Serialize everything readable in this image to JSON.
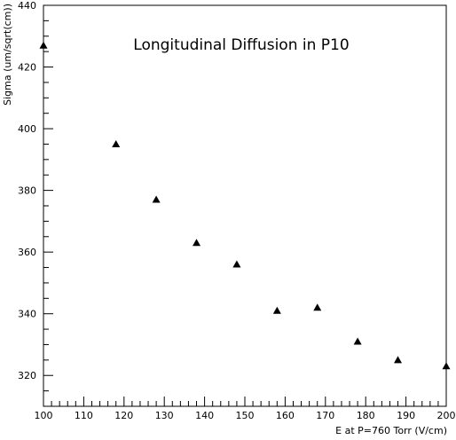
{
  "chart_data": {
    "type": "scatter",
    "title": "Longitudinal Diffusion in P10",
    "xlabel": "E at P=760 Torr (V/cm)",
    "ylabel": "Sigma (um/sqrt(cm))",
    "xlim": [
      100,
      200
    ],
    "ylim": [
      310,
      440
    ],
    "x_ticks": [
      100,
      110,
      120,
      130,
      140,
      150,
      160,
      170,
      180,
      190,
      200
    ],
    "y_ticks": [
      320,
      340,
      360,
      380,
      400,
      420,
      440
    ],
    "grid": false,
    "marker": "triangle",
    "series": [
      {
        "x": [
          100,
          118,
          128,
          138,
          148,
          158,
          168,
          178,
          188,
          200
        ],
        "y": [
          427,
          395,
          377,
          363,
          356,
          341,
          342,
          331,
          325,
          323
        ]
      }
    ]
  }
}
